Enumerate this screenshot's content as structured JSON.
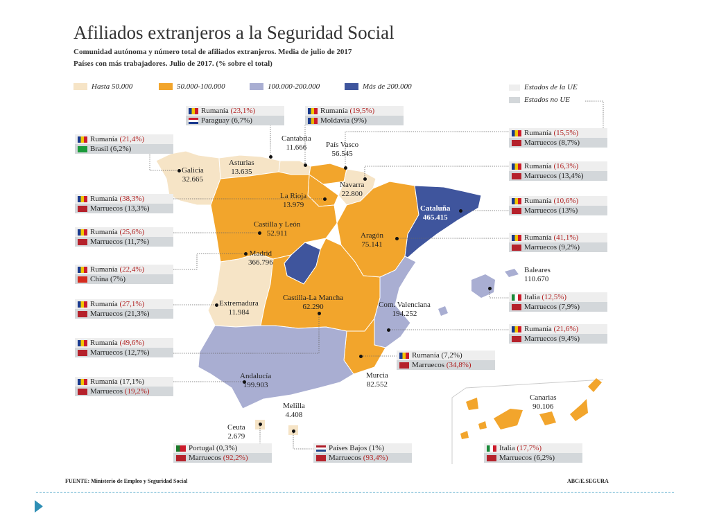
{
  "title": "Afiliados extranjeros a la Seguridad Social",
  "subtitle_1": "Comunidad autónoma y número total de afiliados extranjeros. Media de julio de 2017",
  "subtitle_2": "Países con más trabajadores. Julio de 2017. (% sobre el total)",
  "legend": [
    {
      "label": "Hasta 50.000",
      "color": "#f6e4c6"
    },
    {
      "label": "50.000-100.000",
      "color": "#f2a52c"
    },
    {
      "label": "100.000-200.000",
      "color": "#a9aed2"
    },
    {
      "label": "Más de 200.000",
      "color": "#3f559d"
    }
  ],
  "legend_ue": {
    "ue": "Estados de la UE",
    "noue": "Estados no UE",
    "ue_color": "#eeeeee",
    "noue_color": "#d3d7da"
  },
  "regions": {
    "galicia": {
      "name": "Galicia",
      "value": "32.665"
    },
    "asturias": {
      "name": "Asturias",
      "value": "13.635"
    },
    "cantabria": {
      "name": "Cantabria",
      "value": "11.666"
    },
    "pais_vasco": {
      "name": "País Vasco",
      "value": "56.545"
    },
    "navarra": {
      "name": "Navarra",
      "value": "22.800"
    },
    "la_rioja": {
      "name": "La Rioja",
      "value": "13.979"
    },
    "cyl": {
      "name": "Castilla y León",
      "value": "52.911"
    },
    "cataluna": {
      "name": "Cataluña",
      "value": "465.415"
    },
    "aragon": {
      "name": "Aragón",
      "value": "75.141"
    },
    "madrid": {
      "name": "Madrid",
      "value": "366.796"
    },
    "baleares": {
      "name": "Baleares",
      "value": "110.670"
    },
    "extremadura": {
      "name": "Extremadura",
      "value": "11.984"
    },
    "clm": {
      "name": "Castilla-La Mancha",
      "value": "62.290"
    },
    "valencia": {
      "name": "Com. Valenciana",
      "value": "194.252"
    },
    "murcia": {
      "name": "Murcia",
      "value": "82.552"
    },
    "andalucia": {
      "name": "Andalucía",
      "value": "199.903"
    },
    "ceuta": {
      "name": "Ceuta",
      "value": "2.679"
    },
    "melilla": {
      "name": "Melilla",
      "value": "4.408"
    },
    "canarias": {
      "name": "Canarias",
      "value": "90.106"
    }
  },
  "boxes": {
    "galicia": [
      {
        "country": "Rumanía",
        "pct": "(21,4%)",
        "flag": "ro"
      },
      {
        "country": "Brasil",
        "pct": "(6,2%)",
        "flag": "br"
      }
    ],
    "asturias": [
      {
        "country": "Rumanía",
        "pct": "(23,1%)",
        "flag": "ro"
      },
      {
        "country": "Paraguay",
        "pct": "(6,7%)",
        "flag": "py"
      }
    ],
    "cantabria": [
      {
        "country": "Rumanía",
        "pct": "(19,5%)",
        "flag": "ro"
      },
      {
        "country": "Moldavia",
        "pct": "(9%)",
        "flag": "md"
      }
    ],
    "pais_vasco": [
      {
        "country": "Rumanía",
        "pct": "(15,5%)",
        "flag": "ro"
      },
      {
        "country": "Marruecos",
        "pct": "(8,7%)",
        "flag": "ma"
      }
    ],
    "navarra": [
      {
        "country": "Rumanía",
        "pct": "(16,3%)",
        "flag": "ro"
      },
      {
        "country": "Marruecos",
        "pct": "(13,4%)",
        "flag": "ma"
      }
    ],
    "la_rioja": [
      {
        "country": "Rumanía",
        "pct": "(38,3%)",
        "flag": "ro"
      },
      {
        "country": "Marruecos",
        "pct": "(13,3%)",
        "flag": "ma"
      }
    ],
    "cataluna": [
      {
        "country": "Rumanía",
        "pct": "(10,6%)",
        "flag": "ro"
      },
      {
        "country": "Marruecos",
        "pct": "(13%)",
        "flag": "ma"
      }
    ],
    "cyl": [
      {
        "country": "Rumanía",
        "pct": "(25,6%)",
        "flag": "ro"
      },
      {
        "country": "Marruecos",
        "pct": "(11,7%)",
        "flag": "ma"
      }
    ],
    "aragon": [
      {
        "country": "Rumanía",
        "pct": "(41,1%)",
        "flag": "ro"
      },
      {
        "country": "Marruecos",
        "pct": "(9,2%)",
        "flag": "ma"
      }
    ],
    "madrid": [
      {
        "country": "Rumanía",
        "pct": "(22,4%)",
        "flag": "ro"
      },
      {
        "country": "China",
        "pct": "(7%)",
        "flag": "cn"
      }
    ],
    "baleares": [
      {
        "country": "Italia",
        "pct": "(12,5%)",
        "flag": "it"
      },
      {
        "country": "Marruecos",
        "pct": "(7,9%)",
        "flag": "ma"
      }
    ],
    "extremadura": [
      {
        "country": "Rumanía",
        "pct": "(27,1%)",
        "flag": "ro"
      },
      {
        "country": "Marruecos",
        "pct": "(21,3%)",
        "flag": "ma"
      }
    ],
    "valencia": [
      {
        "country": "Rumanía",
        "pct": "(21,6%)",
        "flag": "ro"
      },
      {
        "country": "Marruecos",
        "pct": "(9,4%)",
        "flag": "ma"
      }
    ],
    "clm": [
      {
        "country": "Rumanía",
        "pct": "(49,6%)",
        "flag": "ro"
      },
      {
        "country": "Marruecos",
        "pct": "(12,7%)",
        "flag": "ma"
      }
    ],
    "murcia": [
      {
        "country": "Rumanía",
        "pct": "(7,2%)",
        "flag": "ro"
      },
      {
        "country": "Marruecos",
        "pct": "(34,8%)",
        "flag": "ma"
      }
    ],
    "andalucia": [
      {
        "country": "Rumanía",
        "pct": "(17,1%)",
        "flag": "ro"
      },
      {
        "country": "Marruecos",
        "pct": "(19,2%)",
        "flag": "ma"
      }
    ],
    "ceuta": [
      {
        "country": "Portugal",
        "pct": "(0,3%)",
        "flag": "pt"
      },
      {
        "country": "Marruecos",
        "pct": "(92,2%)",
        "flag": "ma"
      }
    ],
    "melilla": [
      {
        "country": "Países Bajos",
        "pct": "(1%)",
        "flag": "nl"
      },
      {
        "country": "Marruecos",
        "pct": "(93,4%)",
        "flag": "ma"
      }
    ],
    "canarias": [
      {
        "country": "Italia",
        "pct": "(17,7%)",
        "flag": "it"
      },
      {
        "country": "Marruecos",
        "pct": "(6,2%)",
        "flag": "ma"
      }
    ]
  },
  "footer": {
    "source": "FUENTE: Ministerio de Empleo y Seguridad Social",
    "credit": "ABC/E.SEGURA"
  }
}
